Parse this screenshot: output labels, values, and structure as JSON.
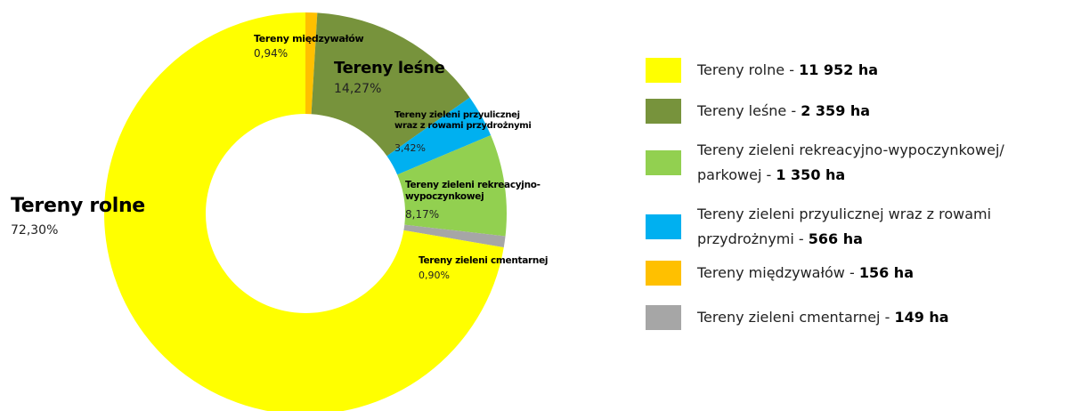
{
  "chart_data": {
    "type": "donut",
    "categories": [
      "Tereny międzywałów",
      "Tereny leśne",
      "Tereny zieleni przyulicznej\nwraz z rowami przydrożnymi",
      "Tereny zieleni rekreacyjno-\nwypoczynkowej",
      "Tereny zieleni cmentarnej",
      "Tereny rolne"
    ],
    "values": [
      0.94,
      14.27,
      3.42,
      8.17,
      0.9,
      72.3
    ],
    "value_labels": [
      "0,94%",
      "14,27%",
      "3,42%",
      "8,17%",
      "0,90%",
      "72,30%"
    ],
    "colors": [
      "#ffc000",
      "#77933c",
      "#00b0f0",
      "#92d050",
      "#a6a6a6",
      "#ffff00"
    ],
    "legend": [
      {
        "label": "Tereny rolne - ",
        "value": "11 952 ha",
        "color": "#ffff00"
      },
      {
        "label": "Tereny leśne - ",
        "value": "2 359 ha",
        "color": "#77933c"
      },
      {
        "label": "Tereny zieleni rekreacyjno-wypoczynkowej/\nparkowej - ",
        "value": "1 350 ha",
        "color": "#92d050"
      },
      {
        "label": "Tereny zieleni przyulicznej wraz z rowami\nprzydrożnymi - ",
        "value": "566 ha",
        "color": "#00b0f0"
      },
      {
        "label": "Tereny międzywałów - ",
        "value": "156 ha",
        "color": "#ffc000"
      },
      {
        "label": "Tereny zieleni cmentarnej - ",
        "value": "149 ha",
        "color": "#a6a6a6"
      }
    ]
  }
}
